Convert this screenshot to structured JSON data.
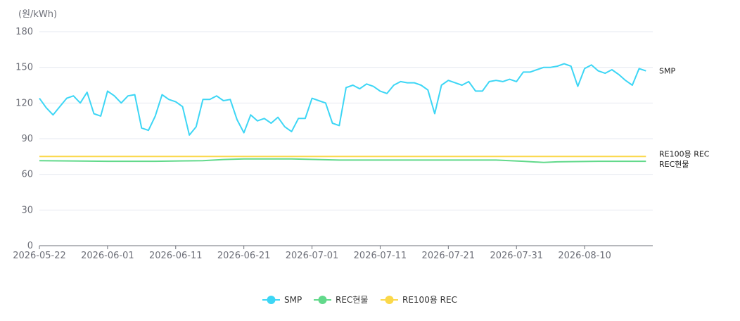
{
  "chart_data": {
    "type": "line",
    "ylabel": "(원/kWh)",
    "ylim": [
      0,
      180
    ],
    "yticks": [
      0,
      30,
      60,
      90,
      120,
      150,
      180
    ],
    "x_tick_labels": [
      "2026-05-22",
      "2026-06-01",
      "2026-06-11",
      "2026-06-21",
      "2026-07-01",
      "2026-07-11",
      "2026-07-21",
      "2026-07-31",
      "2026-08-10"
    ],
    "x_start": "2026-05-22",
    "x_end": "2026-08-20",
    "grid": true,
    "legend_position": "bottom-center",
    "series": [
      {
        "name": "SMP",
        "color": "#3dd6f5",
        "end_label": "SMP",
        "x": [
          "2026-05-22",
          "2026-05-23",
          "2026-05-24",
          "2026-05-25",
          "2026-05-26",
          "2026-05-27",
          "2026-05-28",
          "2026-05-29",
          "2026-05-30",
          "2026-05-31",
          "2026-06-01",
          "2026-06-02",
          "2026-06-03",
          "2026-06-04",
          "2026-06-05",
          "2026-06-06",
          "2026-06-07",
          "2026-06-08",
          "2026-06-09",
          "2026-06-10",
          "2026-06-11",
          "2026-06-12",
          "2026-06-13",
          "2026-06-14",
          "2026-06-15",
          "2026-06-16",
          "2026-06-17",
          "2026-06-18",
          "2026-06-19",
          "2026-06-20",
          "2026-06-21",
          "2026-06-22",
          "2026-06-23",
          "2026-06-24",
          "2026-06-25",
          "2026-06-26",
          "2026-06-27",
          "2026-06-28",
          "2026-06-29",
          "2026-06-30",
          "2026-07-01",
          "2026-07-02",
          "2026-07-03",
          "2026-07-04",
          "2026-07-05",
          "2026-07-06",
          "2026-07-07",
          "2026-07-08",
          "2026-07-09",
          "2026-07-10",
          "2026-07-11",
          "2026-07-12",
          "2026-07-13",
          "2026-07-14",
          "2026-07-15",
          "2026-07-16",
          "2026-07-17",
          "2026-07-18",
          "2026-07-19",
          "2026-07-20",
          "2026-07-21",
          "2026-07-22",
          "2026-07-23",
          "2026-07-24",
          "2026-07-25",
          "2026-07-26",
          "2026-07-27",
          "2026-07-28",
          "2026-07-29",
          "2026-07-30",
          "2026-07-31",
          "2026-08-01",
          "2026-08-02",
          "2026-08-03",
          "2026-08-04",
          "2026-08-05",
          "2026-08-06",
          "2026-08-07",
          "2026-08-08",
          "2026-08-09",
          "2026-08-10",
          "2026-08-11",
          "2026-08-12",
          "2026-08-13",
          "2026-08-14",
          "2026-08-15",
          "2026-08-16",
          "2026-08-17",
          "2026-08-18",
          "2026-08-19"
        ],
        "values": [
          124,
          116,
          110,
          117,
          124,
          126,
          120,
          129,
          111,
          109,
          130,
          126,
          120,
          126,
          127,
          99,
          97,
          109,
          127,
          123,
          121,
          117,
          93,
          100,
          123,
          123,
          126,
          122,
          123,
          106,
          95,
          110,
          105,
          107,
          103,
          108,
          100,
          96,
          107,
          107,
          124,
          122,
          120,
          103,
          101,
          133,
          135,
          132,
          136,
          134,
          130,
          128,
          135,
          138,
          137,
          137,
          135,
          131,
          111,
          135,
          139,
          137,
          135,
          138,
          130,
          130,
          138,
          139,
          138,
          140,
          138,
          146,
          146,
          148,
          150,
          150,
          151,
          153,
          151,
          134,
          149,
          152,
          147,
          145,
          148,
          144,
          139,
          135,
          149,
          147
        ]
      },
      {
        "name": "REC현물",
        "color": "#62d98b",
        "end_label": "REC현물",
        "x": [
          "2026-05-22",
          "2026-06-01",
          "2026-06-08",
          "2026-06-15",
          "2026-06-18",
          "2026-06-21",
          "2026-06-28",
          "2026-07-05",
          "2026-07-15",
          "2026-07-25",
          "2026-07-28",
          "2026-08-01",
          "2026-08-04",
          "2026-08-06",
          "2026-08-12",
          "2026-08-19"
        ],
        "values": [
          71.5,
          71,
          71,
          71.5,
          72.5,
          73,
          73,
          72,
          72,
          72,
          72,
          71,
          70,
          70.5,
          71,
          71
        ]
      },
      {
        "name": "RE100용 REC",
        "color": "#fbd84a",
        "end_label": "RE100용 REC",
        "x": [
          "2026-05-22",
          "2026-08-19"
        ],
        "values": [
          75,
          75
        ]
      }
    ]
  }
}
